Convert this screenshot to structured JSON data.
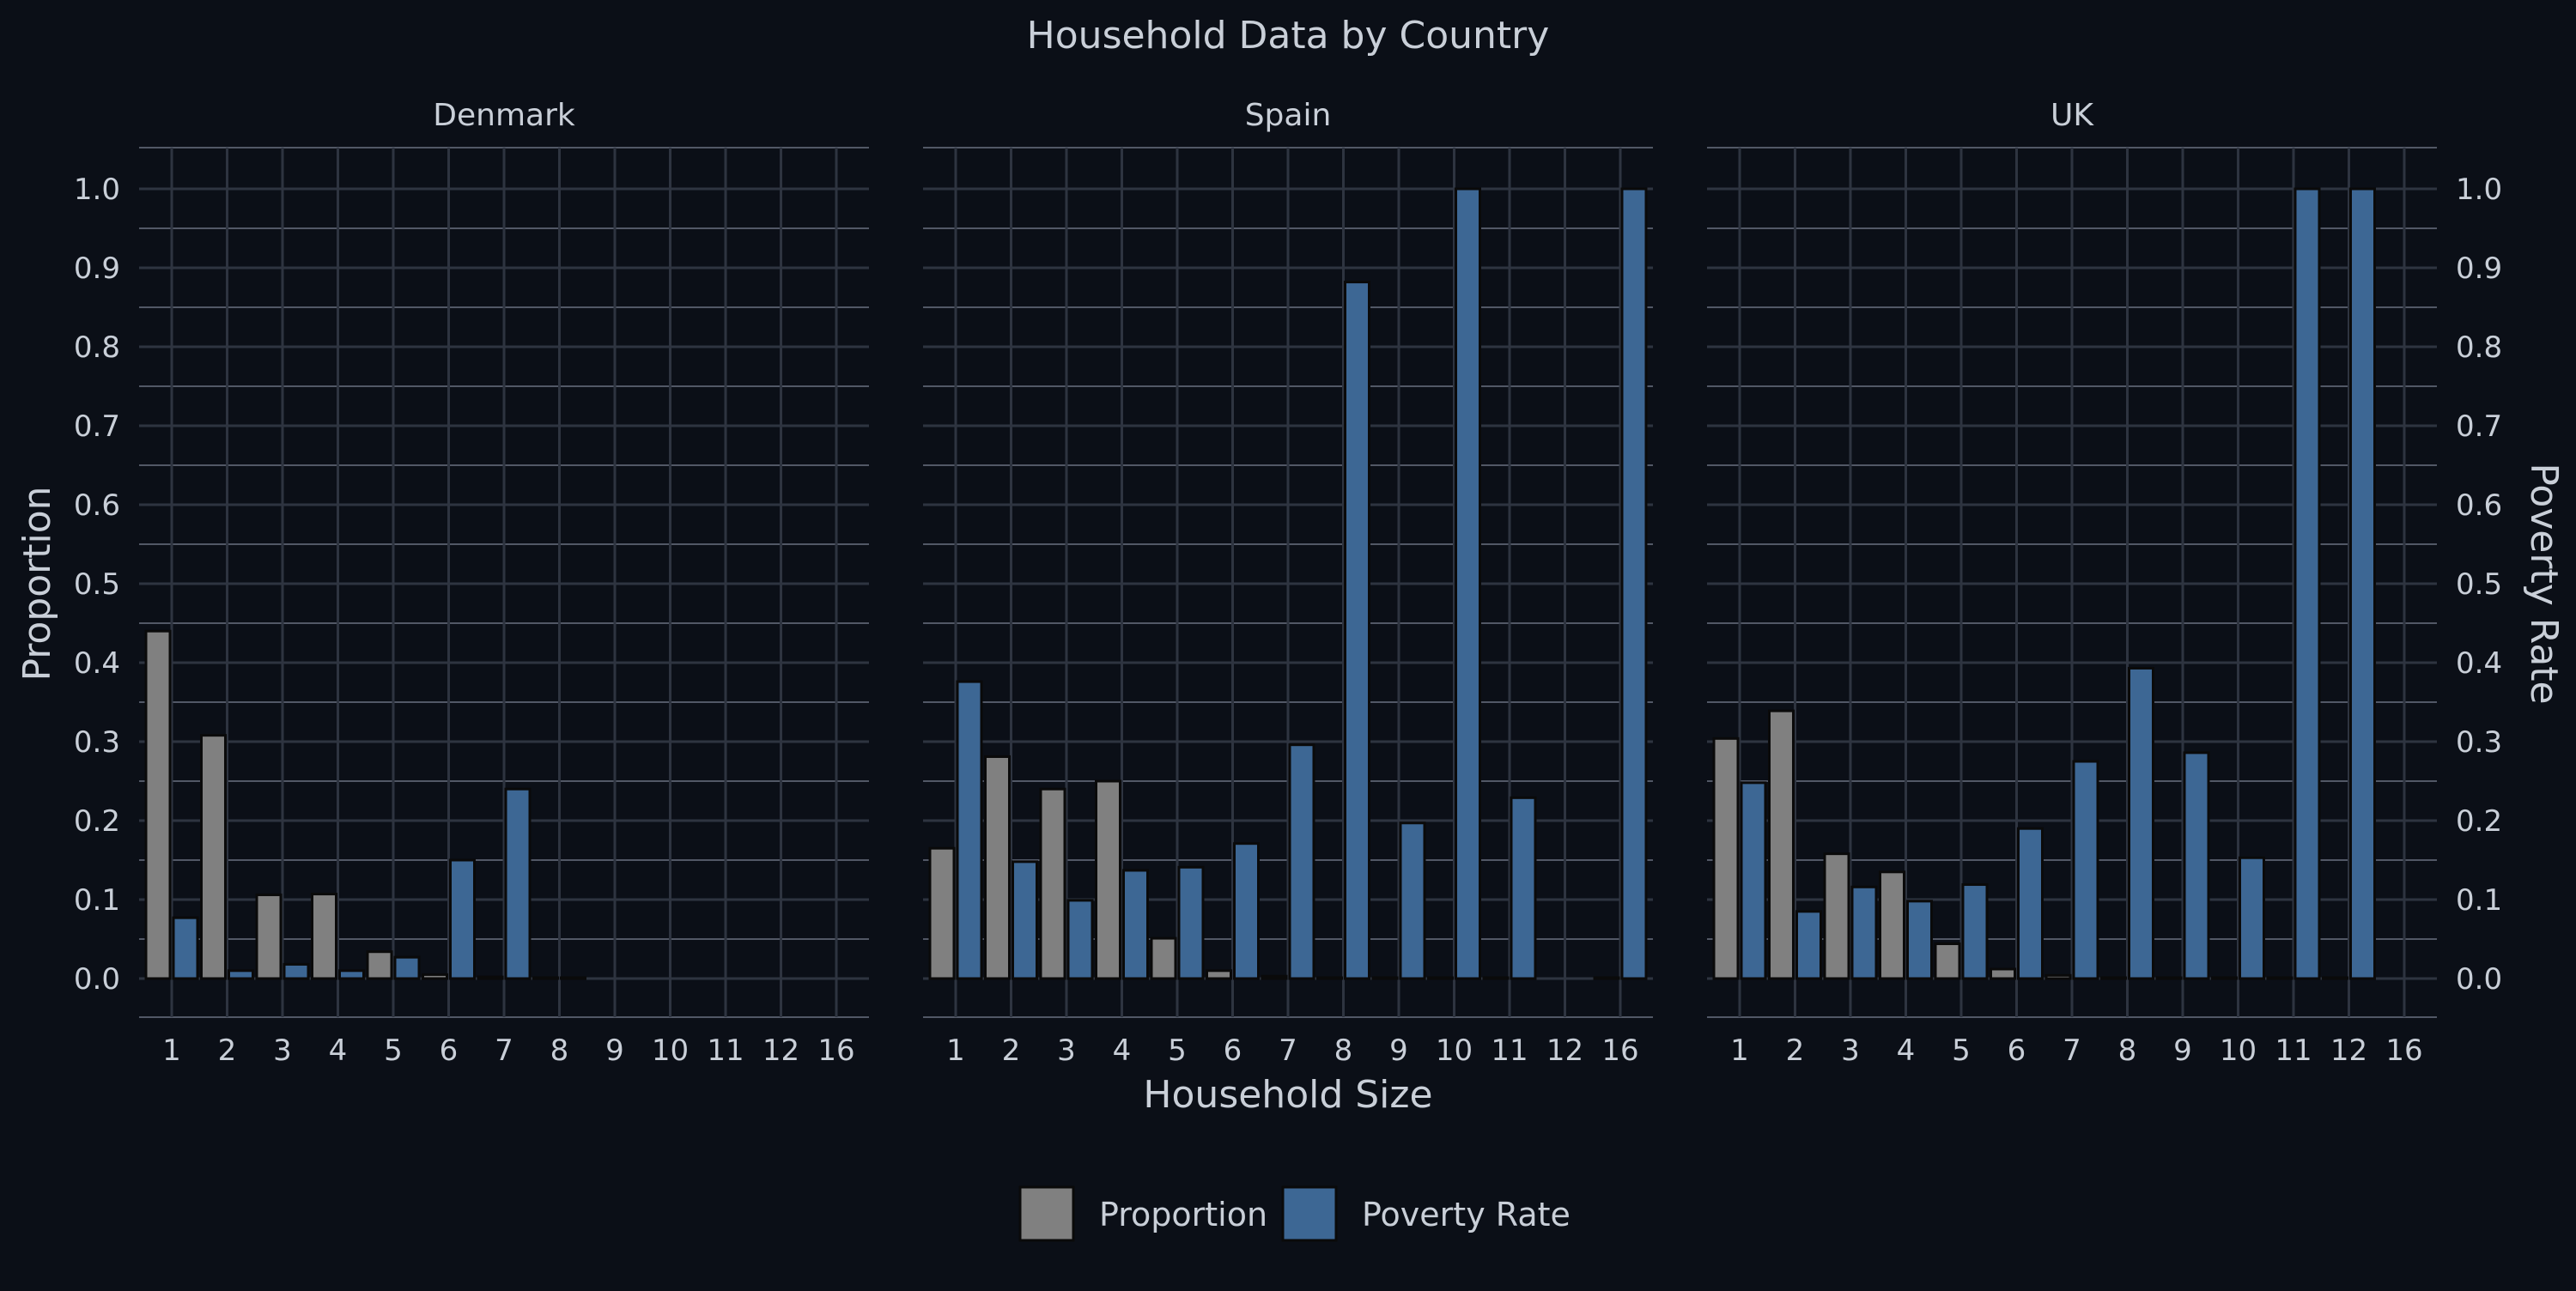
{
  "chart_data": {
    "type": "bar",
    "title": "Household Data by Country",
    "xlabel": "Household Size",
    "ylabel_left": "Proportion",
    "ylabel_right": "Poverty Rate",
    "categories": [
      "1",
      "2",
      "3",
      "4",
      "5",
      "6",
      "7",
      "8",
      "9",
      "10",
      "11",
      "12",
      "16"
    ],
    "ylim": [
      0,
      1.0
    ],
    "yticks": [
      "0.0",
      "0.1",
      "0.2",
      "0.3",
      "0.4",
      "0.5",
      "0.6",
      "0.7",
      "0.8",
      "0.9",
      "1.0"
    ],
    "grid": true,
    "legend_position": "bottom",
    "legend": [
      "Proportion",
      "Poverty Rate"
    ],
    "colors": {
      "background": "#0b0f17",
      "proportion": "#808080",
      "poverty_rate": "#3d6794",
      "bar_outline": "#0a0a0a",
      "grid": "#2e3440",
      "text": "#c9cfd8"
    },
    "panels": [
      {
        "title": "Denmark",
        "series": [
          {
            "name": "Proportion",
            "values": [
              0.44,
              0.308,
              0.106,
              0.107,
              0.034,
              0.005,
              0.002,
              0.001,
              null,
              null,
              null,
              null,
              null
            ]
          },
          {
            "name": "Poverty Rate",
            "values": [
              0.077,
              0.01,
              0.018,
              0.01,
              0.027,
              0.15,
              0.24,
              0.0,
              null,
              null,
              null,
              null,
              null
            ]
          }
        ]
      },
      {
        "title": "Spain",
        "series": [
          {
            "name": "Proportion",
            "values": [
              0.165,
              0.281,
              0.24,
              0.25,
              0.051,
              0.01,
              0.003,
              0.001,
              0.001,
              0.001,
              0.001,
              null,
              0.001
            ]
          },
          {
            "name": "Poverty Rate",
            "values": [
              0.376,
              0.148,
              0.099,
              0.137,
              0.141,
              0.171,
              0.296,
              0.882,
              0.197,
              1.0,
              0.229,
              null,
              1.0
            ]
          }
        ]
      },
      {
        "title": "UK",
        "series": [
          {
            "name": "Proportion",
            "values": [
              0.304,
              0.339,
              0.158,
              0.135,
              0.044,
              0.012,
              0.004,
              0.001,
              0.001,
              0.001,
              0.001,
              0.001,
              null
            ]
          },
          {
            "name": "Poverty Rate",
            "values": [
              0.248,
              0.085,
              0.116,
              0.098,
              0.119,
              0.19,
              0.275,
              0.393,
              0.286,
              0.153,
              1.0,
              1.0,
              null
            ]
          }
        ]
      }
    ]
  }
}
